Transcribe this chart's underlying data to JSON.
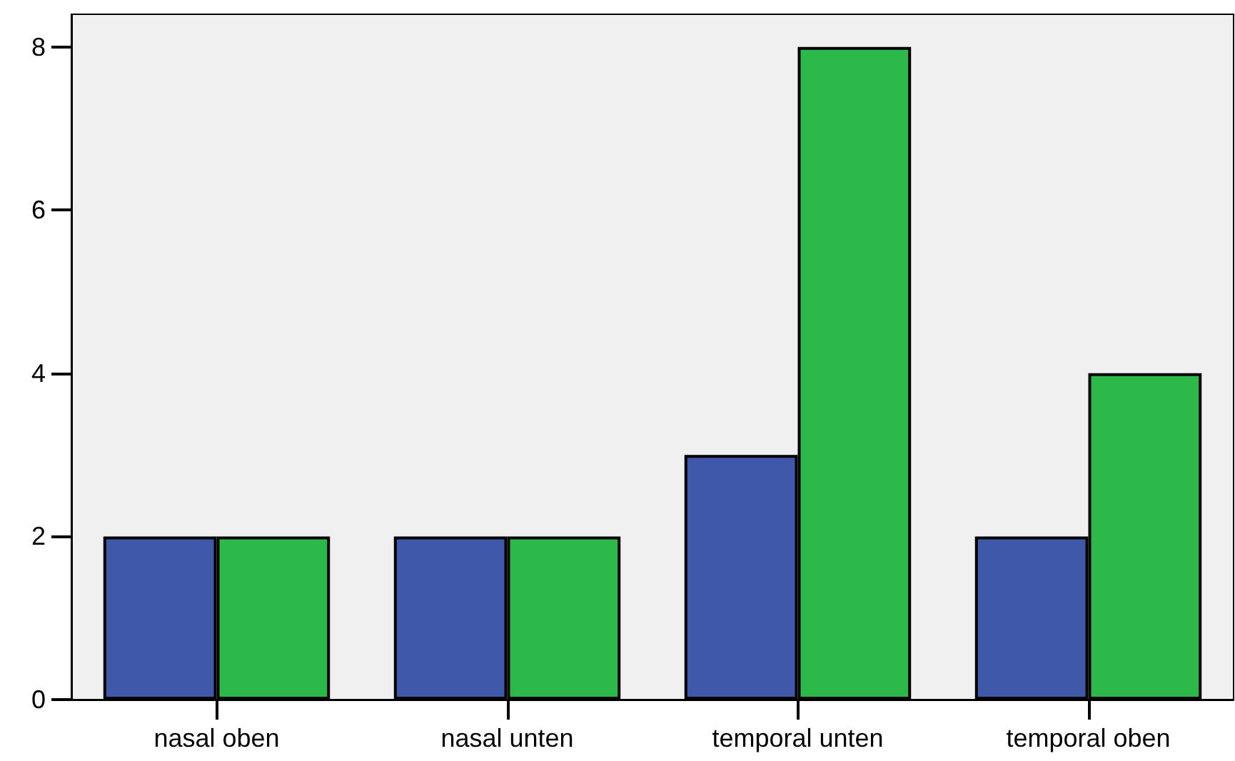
{
  "chart_data": {
    "type": "bar",
    "categories": [
      "nasal oben",
      "nasal unten",
      "temporal unten",
      "temporal oben"
    ],
    "series": [
      {
        "color": "#3f58aa",
        "values": [
          2,
          2,
          3,
          2
        ]
      },
      {
        "color": "#2db84a",
        "values": [
          2,
          2,
          8,
          4
        ]
      }
    ],
    "ylim": [
      0,
      8.4
    ],
    "yticks": [
      0,
      2,
      4,
      6,
      8
    ]
  }
}
